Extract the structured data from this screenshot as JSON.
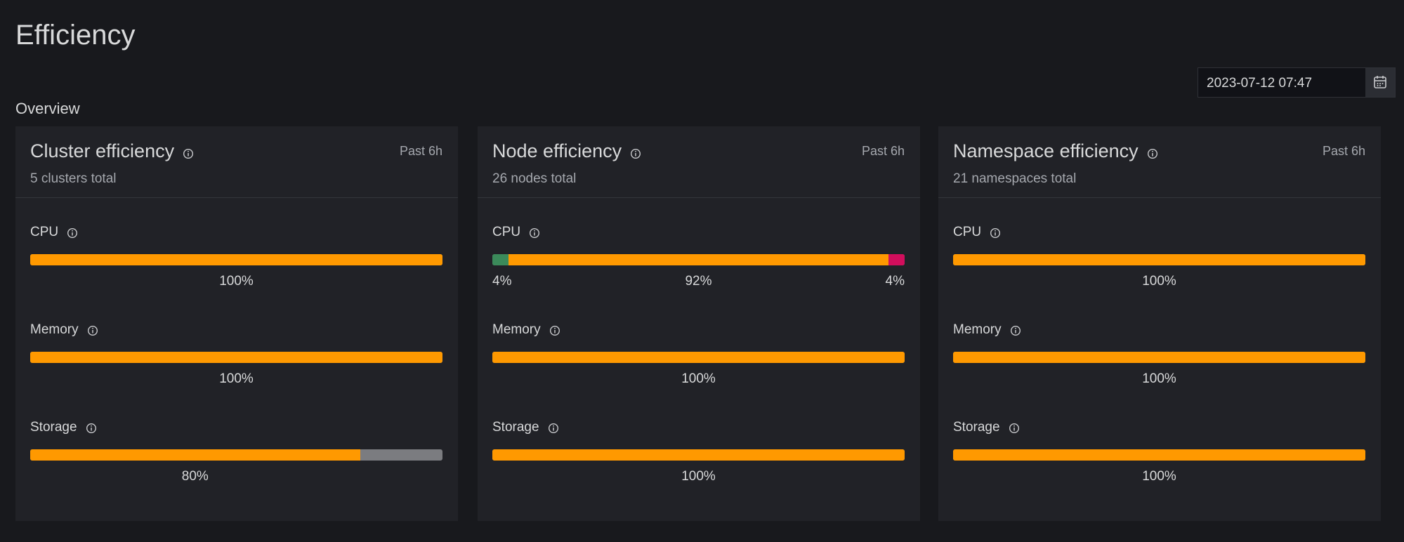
{
  "header": {
    "title": "Efficiency",
    "date": "2023-07-12 07:47"
  },
  "section": "Overview",
  "cards": [
    {
      "title": "Cluster efficiency",
      "subtitle": "5 clusters total",
      "period": "Past 6h",
      "metrics": [
        {
          "name": "CPU",
          "segments": [
            {
              "value": 100,
              "label": "100%",
              "color": "#ff9900"
            }
          ]
        },
        {
          "name": "Memory",
          "segments": [
            {
              "value": 100,
              "label": "100%",
              "color": "#ff9900"
            }
          ]
        },
        {
          "name": "Storage",
          "segments": [
            {
              "value": 80,
              "label": "80%",
              "color": "#ff9900"
            }
          ]
        }
      ]
    },
    {
      "title": "Node efficiency",
      "subtitle": "26 nodes total",
      "period": "Past 6h",
      "metrics": [
        {
          "name": "CPU",
          "segments": [
            {
              "value": 4,
              "label": "4%",
              "color": "#3b8a5a"
            },
            {
              "value": 92,
              "label": "92%",
              "color": "#ff9900"
            },
            {
              "value": 4,
              "label": "4%",
              "color": "#d10e5c"
            }
          ]
        },
        {
          "name": "Memory",
          "segments": [
            {
              "value": 100,
              "label": "100%",
              "color": "#ff9900"
            }
          ]
        },
        {
          "name": "Storage",
          "segments": [
            {
              "value": 100,
              "label": "100%",
              "color": "#ff9900"
            }
          ]
        }
      ]
    },
    {
      "title": "Namespace efficiency",
      "subtitle": "21 namespaces total",
      "period": "Past 6h",
      "metrics": [
        {
          "name": "CPU",
          "segments": [
            {
              "value": 100,
              "label": "100%",
              "color": "#ff9900"
            }
          ]
        },
        {
          "name": "Memory",
          "segments": [
            {
              "value": 100,
              "label": "100%",
              "color": "#ff9900"
            }
          ]
        },
        {
          "name": "Storage",
          "segments": [
            {
              "value": 100,
              "label": "100%",
              "color": "#ff9900"
            }
          ]
        }
      ]
    }
  ]
}
